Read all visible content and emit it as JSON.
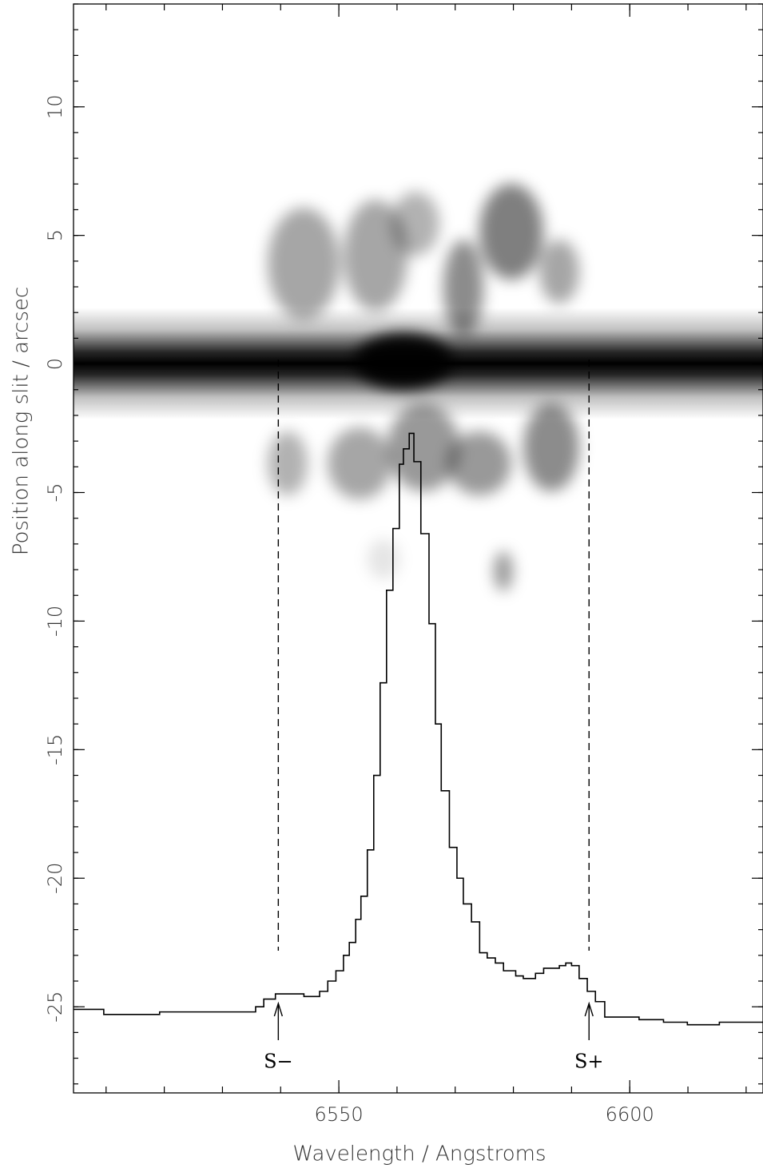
{
  "chart_data": {
    "type": "step",
    "x_label": "Wavelength /  Angstroms",
    "y_label": "Position along slit /  arcsec",
    "xlim": [
      6504.4,
      6622.9
    ],
    "ylim": [
      -28.35,
      14
    ],
    "xticks": [
      6550,
      6600
    ],
    "yticks": [
      10,
      5,
      0,
      -5,
      -10,
      -15,
      -20,
      -25
    ],
    "xminor": 10,
    "yminor": 1,
    "color": "#000000",
    "x": [
      6504.4,
      6509.6,
      6519.2,
      6526.1,
      6533.0,
      6535.7,
      6537.1,
      6539.1,
      6544.0,
      6546.7,
      6548.1,
      6549.5,
      6550.8,
      6551.8,
      6552.9,
      6553.8,
      6554.9,
      6556.0,
      6557.1,
      6558.2,
      6559.3,
      6560.4,
      6561.1,
      6562.1,
      6562.9,
      6564.1,
      6565.5,
      6566.6,
      6567.6,
      6569.0,
      6570.3,
      6571.4,
      6572.8,
      6574.2,
      6575.5,
      6576.9,
      6578.3,
      6580.4,
      6581.7,
      6583.8,
      6585.2,
      6587.9,
      6589.0,
      6590.0,
      6591.3,
      6592.7,
      6594.1,
      6595.7,
      6598.9,
      6601.6,
      6605.8,
      6609.9,
      6615.4,
      6619.5
    ],
    "values": [
      -25.1,
      -25.3,
      -25.2,
      -25.2,
      -25.2,
      -25.0,
      -24.7,
      -24.5,
      -24.6,
      -24.4,
      -24.0,
      -23.6,
      -23.0,
      -22.5,
      -21.6,
      -20.7,
      -18.9,
      -16.0,
      -12.4,
      -8.8,
      -6.4,
      -3.9,
      -3.3,
      -2.7,
      -3.8,
      -6.6,
      -10.1,
      -14.0,
      -16.6,
      -18.8,
      -20.0,
      -21.0,
      -21.7,
      -22.9,
      -23.1,
      -23.3,
      -23.6,
      -23.8,
      -23.9,
      -23.7,
      -23.5,
      -23.4,
      -23.3,
      -23.4,
      -23.9,
      -24.4,
      -24.8,
      -25.4,
      -25.4,
      -25.5,
      -25.6,
      -25.7,
      -25.6,
      -25.6
    ],
    "annotations": [
      {
        "label": "S−",
        "x": 6539.6
      },
      {
        "label": "S+",
        "x": 6593.0
      }
    ]
  }
}
